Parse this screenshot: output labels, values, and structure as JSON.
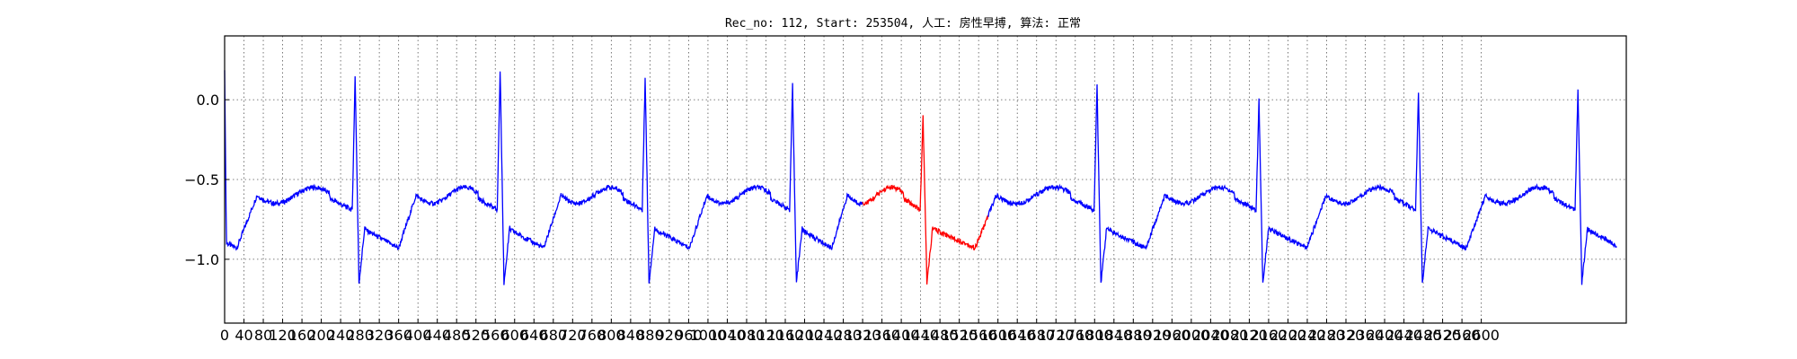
{
  "chart_data": {
    "type": "line",
    "title": "Rec_no: 112, Start: 253504, 人工: 房性早搏, 算法: 正常",
    "xlabel": "",
    "ylabel": "",
    "xlim": [
      0,
      2900
    ],
    "ylim": [
      -1.4,
      0.4
    ],
    "yticks": [
      0.0,
      -0.5,
      -1.0
    ],
    "xticks": [
      0,
      40,
      80,
      120,
      160,
      200,
      240,
      280,
      320,
      360,
      400,
      440,
      480,
      520,
      560,
      600,
      640,
      680,
      720,
      760,
      800,
      840,
      880,
      920,
      960,
      1000,
      1040,
      1080,
      1120,
      1160,
      1200,
      1240,
      1280,
      1320,
      1360,
      1400,
      1440,
      1480,
      1520,
      1560,
      1600,
      1640,
      1680,
      1720,
      1760,
      1800,
      1840,
      1880,
      1920,
      1960,
      2000,
      2040,
      2080,
      2120,
      2160,
      2200,
      2240,
      2280,
      2320,
      2360,
      2400,
      2440,
      2480,
      2520,
      2560,
      2600
    ],
    "xtick_labels": [
      "0",
      "40",
      "80",
      "120",
      "160",
      "200",
      "240",
      "280",
      "320",
      "360",
      "400",
      "440",
      "480",
      "520",
      "560",
      "600",
      "640",
      "680",
      "720",
      "760",
      "800",
      "840",
      "880",
      "920",
      "960",
      "1000",
      "1040",
      "1080",
      "1120",
      "1160",
      "1200",
      "1240",
      "1280",
      "1320",
      "1360",
      "1400",
      "1440",
      "1480",
      "1520",
      "1560",
      "1600",
      "1640",
      "1680",
      "1720",
      "1760",
      "1800",
      "1840",
      "1880",
      "1920",
      "1960",
      "2000",
      "2040",
      "2080",
      "2120",
      "2160",
      "2200",
      "2240",
      "2280",
      "2320",
      "2360",
      "2400",
      "2440",
      "2480",
      "2520",
      "2560",
      "2600"
    ],
    "grid": true,
    "beat_r_peaks": [
      270,
      570,
      870,
      1175,
      1445,
      1805,
      2140,
      2470,
      2800
    ],
    "beat_r_amplitudes": [
      0.15,
      0.19,
      0.15,
      0.09,
      -0.1,
      0.1,
      0.0,
      0.05,
      0.06
    ],
    "series": [
      {
        "color": "#0000ff",
        "x_range": [
          0,
          1320
        ]
      },
      {
        "color": "#ff0000",
        "x_range": [
          1320,
          1580
        ]
      },
      {
        "color": "#0000ff",
        "x_range": [
          1580,
          2900
        ]
      }
    ]
  }
}
